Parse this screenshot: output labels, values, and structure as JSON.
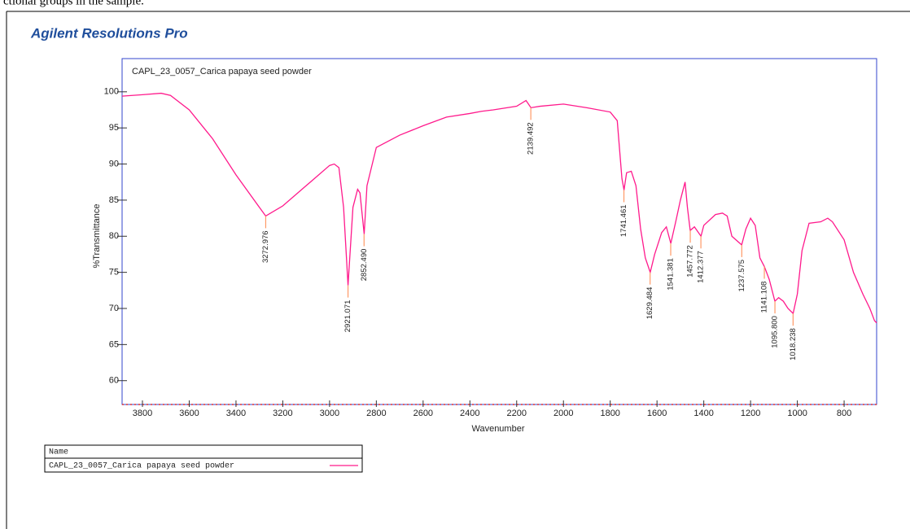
{
  "caption": "ctional groups in the sample.",
  "brand": "Agilent Resolutions Pro",
  "chart_data": {
    "type": "line",
    "title": "CAPL_23_0057_Carica papaya seed powder",
    "xlabel": "Wavenumber",
    "ylabel": "%Transmittance",
    "xlim": [
      3887,
      661
    ],
    "ylim": [
      56.7,
      104.6
    ],
    "xticks": [
      3800,
      3600,
      3400,
      3200,
      3000,
      2800,
      2600,
      2400,
      2200,
      2000,
      1800,
      1600,
      1400,
      1200,
      1000,
      800
    ],
    "yticks": [
      60,
      65,
      70,
      75,
      80,
      85,
      90,
      95,
      100
    ],
    "legend_header": "Name",
    "series": [
      {
        "name": "CAPL_23_0057_Carica papaya seed powder",
        "color": "#ff1a8c",
        "x": [
          3887,
          3800,
          3720,
          3680,
          3600,
          3500,
          3400,
          3300,
          3273,
          3200,
          3100,
          3000,
          2980,
          2960,
          2940,
          2921,
          2900,
          2880,
          2870,
          2852,
          2840,
          2800,
          2700,
          2600,
          2500,
          2400,
          2350,
          2300,
          2200,
          2160,
          2139,
          2100,
          2000,
          1900,
          1800,
          1770,
          1750,
          1741,
          1730,
          1710,
          1690,
          1670,
          1650,
          1629,
          1610,
          1580,
          1560,
          1541,
          1520,
          1500,
          1480,
          1470,
          1458,
          1440,
          1412,
          1400,
          1350,
          1320,
          1300,
          1280,
          1238,
          1220,
          1200,
          1180,
          1160,
          1141,
          1120,
          1096,
          1080,
          1060,
          1040,
          1018,
          1000,
          980,
          950,
          900,
          870,
          850,
          800,
          760,
          720,
          690,
          670,
          661
        ],
        "values": [
          99.4,
          99.6,
          99.8,
          99.5,
          97.5,
          93.5,
          88.5,
          84,
          82.8,
          84.2,
          87,
          89.8,
          90,
          89.5,
          84,
          73.2,
          84,
          86.5,
          86,
          80.3,
          87,
          92.3,
          94,
          95.3,
          96.5,
          97,
          97.3,
          97.5,
          98,
          98.8,
          97.8,
          98,
          98.3,
          97.8,
          97.2,
          96,
          88,
          86.4,
          88.8,
          89,
          87,
          81,
          77,
          75,
          77.5,
          80.5,
          81.3,
          79,
          82,
          85,
          87.5,
          84,
          80.8,
          81.3,
          80,
          81.5,
          83,
          83.2,
          82.8,
          80,
          78.8,
          81,
          82.5,
          81.5,
          77,
          75.8,
          74,
          71,
          71.5,
          71,
          70,
          69.3,
          72,
          78,
          81.8,
          82,
          82.5,
          82,
          79.5,
          75,
          72,
          70,
          68.3,
          68
        ]
      }
    ],
    "peak_color": "#ff9966",
    "peaks": [
      {
        "x": 3272.976,
        "y": 82.8,
        "label": "3272.976"
      },
      {
        "x": 2921.071,
        "y": 73.2,
        "label": "2921.071"
      },
      {
        "x": 2852.49,
        "y": 80.3,
        "label": "2852.490"
      },
      {
        "x": 2139.492,
        "y": 97.8,
        "label": "2139.492"
      },
      {
        "x": 1741.461,
        "y": 86.4,
        "label": "1741.461"
      },
      {
        "x": 1629.484,
        "y": 75,
        "label": "1629.484"
      },
      {
        "x": 1541.381,
        "y": 79,
        "label": "1541.381"
      },
      {
        "x": 1457.772,
        "y": 80.8,
        "label": "1457.772"
      },
      {
        "x": 1412.377,
        "y": 80,
        "label": "1412.377"
      },
      {
        "x": 1237.575,
        "y": 78.8,
        "label": "1237.575"
      },
      {
        "x": 1141.108,
        "y": 75.8,
        "label": "1141.108"
      },
      {
        "x": 1095.8,
        "y": 71,
        "label": "1095.800"
      },
      {
        "x": 1018.238,
        "y": 69.3,
        "label": "1018.238"
      }
    ]
  }
}
